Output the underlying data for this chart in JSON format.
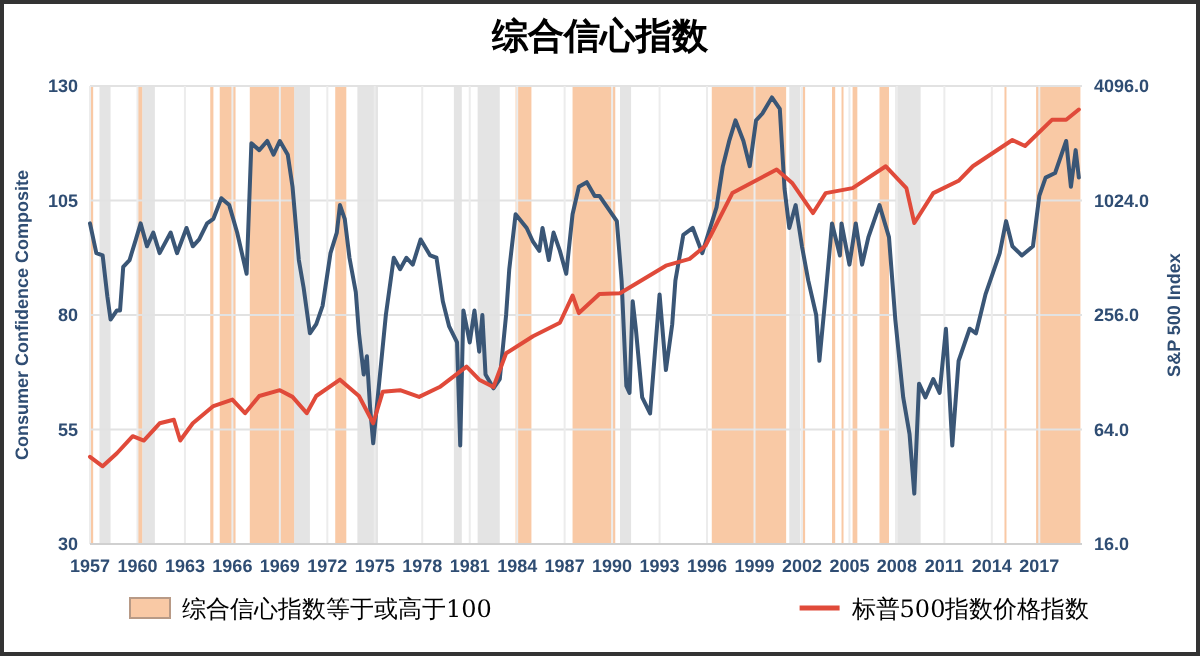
{
  "chart_data": {
    "type": "line",
    "title": "综合信心指数",
    "ylabel": "Consumer Confidence Composite",
    "y2label": "S&P 500 Index",
    "xlim": [
      1957,
      2019.7
    ],
    "xticks": [
      1957,
      1960,
      1963,
      1966,
      1969,
      1972,
      1975,
      1978,
      1981,
      1984,
      1987,
      1990,
      1993,
      1996,
      1999,
      2002,
      2005,
      2008,
      2011,
      2014,
      2017
    ],
    "ylim": [
      30,
      130
    ],
    "yticks": [
      30,
      55,
      80,
      105,
      130
    ],
    "y2lim": [
      16,
      4096
    ],
    "y2ticks": [
      {
        "value": 16,
        "label": "16.0"
      },
      {
        "value": 64,
        "label": "64.0"
      },
      {
        "value": 256,
        "label": "256.0"
      },
      {
        "value": 1024,
        "label": "1024.0"
      },
      {
        "value": 4096,
        "label": "4096.0"
      }
    ],
    "log": "y2",
    "grid": true,
    "legend": "bottom",
    "bands": [
      {
        "axis": "x",
        "from": 1957.6,
        "to": 1958.3,
        "color": "#e4e4e4"
      },
      {
        "axis": "x",
        "from": 1960.3,
        "to": 1961.1,
        "color": "#e4e4e4"
      },
      {
        "axis": "x",
        "from": 1969.9,
        "to": 1970.9,
        "color": "#e4e4e4"
      },
      {
        "axis": "x",
        "from": 1973.9,
        "to": 1975.2,
        "color": "#e4e4e4"
      },
      {
        "axis": "x",
        "from": 1980.0,
        "to": 1980.5,
        "color": "#e4e4e4"
      },
      {
        "axis": "x",
        "from": 1981.5,
        "to": 1982.9,
        "color": "#e4e4e4"
      },
      {
        "axis": "x",
        "from": 1990.5,
        "to": 1991.2,
        "color": "#e4e4e4"
      },
      {
        "axis": "x",
        "from": 2001.2,
        "to": 2001.9,
        "color": "#e4e4e4"
      },
      {
        "axis": "x",
        "from": 2007.9,
        "to": 2009.5,
        "color": "#e4e4e4"
      },
      {
        "axis": "x",
        "from": 1957.0,
        "to": 1957.2,
        "color": "#f9c9a5",
        "label": "综合信心指数等于或高于100"
      },
      {
        "axis": "x",
        "from": 1960.0,
        "to": 1960.3,
        "color": "#f9c9a5"
      },
      {
        "axis": "x",
        "from": 1964.6,
        "to": 1964.8,
        "color": "#f9c9a5"
      },
      {
        "axis": "x",
        "from": 1965.2,
        "to": 1966.2,
        "color": "#f9c9a5"
      },
      {
        "axis": "x",
        "from": 1967.1,
        "to": 1969.9,
        "color": "#f9c9a5"
      },
      {
        "axis": "x",
        "from": 1972.5,
        "to": 1973.2,
        "color": "#f9c9a5"
      },
      {
        "axis": "x",
        "from": 1983.9,
        "to": 1984.9,
        "color": "#f9c9a5"
      },
      {
        "axis": "x",
        "from": 1987.5,
        "to": 1990.2,
        "color": "#f9c9a5"
      },
      {
        "axis": "x",
        "from": 1996.3,
        "to": 2001.0,
        "color": "#f9c9a5"
      },
      {
        "axis": "x",
        "from": 2002.0,
        "to": 2002.2,
        "color": "#f9c9a5"
      },
      {
        "axis": "x",
        "from": 2003.9,
        "to": 2004.1,
        "color": "#f9c9a5"
      },
      {
        "axis": "x",
        "from": 2004.5,
        "to": 2004.6,
        "color": "#f9c9a5"
      },
      {
        "axis": "x",
        "from": 2005.2,
        "to": 2005.5,
        "color": "#f9c9a5"
      },
      {
        "axis": "x",
        "from": 2006.9,
        "to": 2007.5,
        "color": "#f9c9a5"
      },
      {
        "axis": "x",
        "from": 2014.8,
        "to": 2014.9,
        "color": "#f9c9a5"
      },
      {
        "axis": "x",
        "from": 2016.8,
        "to": 2019.6,
        "color": "#f9c9a5"
      }
    ],
    "series": [
      {
        "color": "#3a5676",
        "x": [
          1957.0,
          1957.4,
          1957.8,
          1958.1,
          1958.3,
          1958.7,
          1958.9,
          1959.1,
          1959.5,
          1959.9,
          1960.2,
          1960.6,
          1961.0,
          1961.4,
          1962.1,
          1962.5,
          1963.1,
          1963.5,
          1963.9,
          1964.4,
          1964.8,
          1965.3,
          1965.8,
          1966.3,
          1966.9,
          1967.2,
          1967.7,
          1968.2,
          1968.6,
          1969.0,
          1969.5,
          1969.8,
          1970.2,
          1970.5,
          1970.9,
          1971.3,
          1971.7,
          1972.2,
          1972.6,
          1972.8,
          1973.1,
          1973.4,
          1973.8,
          1974.0,
          1974.3,
          1974.5,
          1974.7,
          1974.9,
          1975.3,
          1975.7,
          1976.2,
          1976.6,
          1977.0,
          1977.4,
          1977.9,
          1978.5,
          1978.9,
          1979.3,
          1979.7,
          1980.2,
          1980.4,
          1980.6,
          1981.0,
          1981.3,
          1981.6,
          1981.8,
          1982.0,
          1982.5,
          1982.9,
          1983.3,
          1983.5,
          1983.9,
          1984.6,
          1985.0,
          1985.4,
          1985.6,
          1986.0,
          1986.3,
          1986.7,
          1987.1,
          1987.5,
          1987.9,
          1988.4,
          1988.9,
          1989.2,
          1990.3,
          1990.6,
          1990.9,
          1991.1,
          1991.3,
          1991.5,
          1991.9,
          1992.4,
          1993.0,
          1993.4,
          1993.8,
          1994.0,
          1994.5,
          1995.1,
          1995.7,
          1996.6,
          1997.0,
          1997.4,
          1997.8,
          1998.3,
          1998.7,
          1999.1,
          1999.5,
          2000.1,
          2000.6,
          2000.9,
          2001.2,
          2001.6,
          2002.0,
          2002.4,
          2002.9,
          2003.1,
          2003.5,
          2003.9,
          2004.4,
          2004.5,
          2005.0,
          2005.4,
          2005.8,
          2006.2,
          2006.9,
          2007.5,
          2007.9,
          2008.4,
          2008.8,
          2009.1,
          2009.4,
          2009.8,
          2010.3,
          2010.7,
          2011.1,
          2011.5,
          2011.9,
          2012.6,
          2013.0,
          2013.6,
          2014.5,
          2014.9,
          2015.3,
          2015.9,
          2016.6,
          2017.0,
          2017.4,
          2018.0,
          2018.7,
          2019.0,
          2019.3,
          2019.5
        ],
        "values": [
          100,
          93.5,
          93,
          84,
          79,
          81,
          81,
          90.5,
          92,
          96.5,
          100,
          95,
          98,
          93.5,
          98,
          93.5,
          99,
          95,
          96.5,
          100,
          101,
          105.5,
          104,
          98,
          89,
          117.5,
          116,
          118,
          115,
          118,
          115,
          108,
          92,
          86,
          76,
          78,
          82,
          93.5,
          98,
          104,
          101,
          92.5,
          85,
          76,
          67,
          71,
          60,
          52,
          66,
          80,
          92.5,
          90,
          92.5,
          91,
          96.5,
          93,
          92.5,
          83,
          77.5,
          74,
          51.5,
          81,
          74,
          81,
          72,
          80,
          67,
          64,
          66,
          80,
          90,
          102,
          99,
          96,
          94,
          99,
          92,
          98,
          94,
          89,
          102,
          108,
          109,
          106,
          106,
          100.5,
          87.5,
          64.5,
          63,
          83,
          77,
          62,
          58.5,
          84.5,
          68,
          78,
          87.5,
          97.5,
          99,
          93.5,
          103.5,
          112.5,
          118,
          122.5,
          118,
          112.5,
          122.5,
          124,
          127.5,
          125,
          107.5,
          99,
          104,
          95,
          87.5,
          80,
          70,
          84.5,
          100,
          93,
          100,
          91,
          100,
          91,
          97,
          104,
          97,
          79,
          62,
          54,
          41,
          65,
          62,
          66,
          63,
          77,
          51.5,
          70,
          77,
          76,
          84.5,
          93.5,
          100.5,
          95,
          93,
          95,
          106,
          110,
          111,
          118,
          108,
          116,
          110
        ]
      },
      {
        "name": "标普500指数价格指数",
        "color": "#e04a3a",
        "axis": "y2",
        "x": [
          1957.0,
          1957.8,
          1958.7,
          1959.7,
          1960.4,
          1961.4,
          1962.3,
          1962.7,
          1963.5,
          1964.8,
          1966.0,
          1966.8,
          1967.7,
          1969.0,
          1969.8,
          1970.7,
          1971.3,
          1972.8,
          1974.0,
          1974.9,
          1975.5,
          1976.6,
          1977.8,
          1979.1,
          1980.8,
          1981.6,
          1982.5,
          1983.3,
          1985.0,
          1986.7,
          1987.5,
          1987.9,
          1989.2,
          1990.5,
          1993.4,
          1994.9,
          1995.9,
          1997.6,
          2000.4,
          2001.4,
          2002.7,
          2003.5,
          2005.2,
          2007.3,
          2008.6,
          2009.1,
          2010.3,
          2011.9,
          2012.8,
          2015.3,
          2016.1,
          2017.8,
          2018.7,
          2019.5
        ],
        "values": [
          46,
          41,
          48,
          59,
          56,
          69,
          72,
          56,
          69,
          85,
          92,
          78,
          96,
          103,
          95,
          78,
          96,
          117,
          96,
          69,
          101,
          103,
          95,
          107,
          137,
          117,
          107,
          161,
          198,
          233,
          324,
          262,
          330,
          333,
          465,
          505,
          592,
          1120,
          1490,
          1260,
          880,
          1120,
          1190,
          1550,
          1190,
          780,
          1120,
          1300,
          1550,
          2130,
          1980,
          2720,
          2720,
          3080
        ]
      }
    ]
  }
}
